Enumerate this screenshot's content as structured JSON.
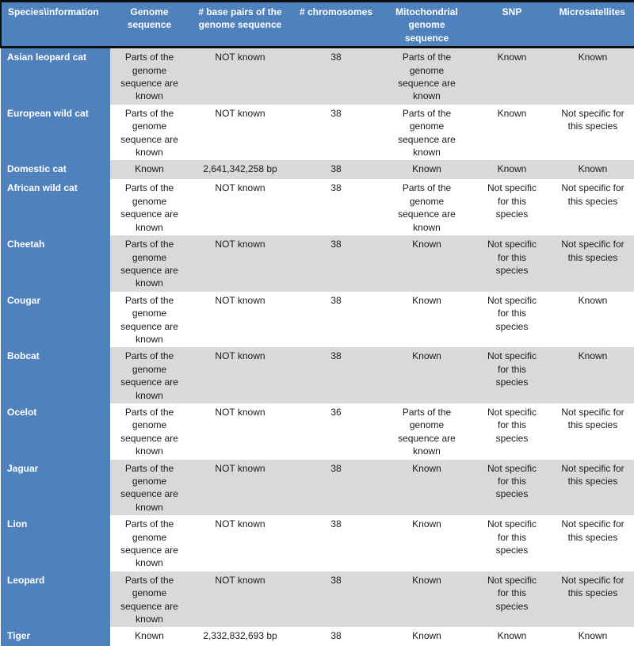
{
  "colors": {
    "accent_blue": "#4f81bd",
    "row_gray": "#d9d9d9",
    "row_white": "#ffffff",
    "border_black": "#0d0d0d",
    "header_text": "#ffffff",
    "body_text": "#1a1a1a"
  },
  "table": {
    "columns": [
      {
        "label": "Species\\information"
      },
      {
        "label": "Genome\nsequence"
      },
      {
        "label": "# base pairs of the\ngenome sequence"
      },
      {
        "label": "# chromosomes"
      },
      {
        "label": "Mitochondrial\ngenome\nsequence"
      },
      {
        "label": "SNP"
      },
      {
        "label": "Microsatellites"
      }
    ],
    "rows": [
      {
        "species": "Asian leopard cat",
        "genome_sequence": "Parts of the\ngenome\nsequence are\nknown",
        "base_pairs": "NOT known",
        "chromosomes": "38",
        "mitochondrial": "Parts of the\ngenome\nsequence are\nknown",
        "snp": "Known",
        "microsatellites": "Known"
      },
      {
        "species": "European wild cat",
        "genome_sequence": "Parts of the\ngenome\nsequence are\nknown",
        "base_pairs": "NOT known",
        "chromosomes": "38",
        "mitochondrial": "Parts of the\ngenome\nsequence are\nknown",
        "snp": "Known",
        "microsatellites": "Not specific for\nthis species"
      },
      {
        "species": "Domestic cat",
        "genome_sequence": "Known",
        "base_pairs": "2,641,342,258 bp",
        "chromosomes": "38",
        "mitochondrial": "Known",
        "snp": "Known",
        "microsatellites": "Known"
      },
      {
        "species": "African wild cat",
        "genome_sequence": "Parts of the\ngenome\nsequence are\nknown",
        "base_pairs": "NOT known",
        "chromosomes": "38",
        "mitochondrial": "Parts of the\ngenome\nsequence are\nknown",
        "snp": "Not specific\nfor this\nspecies",
        "microsatellites": "Not specific for\nthis species"
      },
      {
        "species": "Cheetah",
        "genome_sequence": "Parts of the\ngenome\nsequence are\nknown",
        "base_pairs": "NOT known",
        "chromosomes": "38",
        "mitochondrial": "Known",
        "snp": "Not specific\nfor this\nspecies",
        "microsatellites": "Not specific for\nthis species"
      },
      {
        "species": "Cougar",
        "genome_sequence": "Parts of the\ngenome\nsequence are\nknown",
        "base_pairs": "NOT known",
        "chromosomes": "38",
        "mitochondrial": "Known",
        "snp": "Not specific\nfor this\nspecies",
        "microsatellites": "Known"
      },
      {
        "species": "Bobcat",
        "genome_sequence": "Parts of the\ngenome\nsequence are\nknown",
        "base_pairs": "NOT known",
        "chromosomes": "38",
        "mitochondrial": "Known",
        "snp": "Not specific\nfor this\nspecies",
        "microsatellites": "Known"
      },
      {
        "species": "Ocelot",
        "genome_sequence": "Parts of the\ngenome\nsequence are\nknown",
        "base_pairs": "NOT known",
        "chromosomes": "36",
        "mitochondrial": "Parts of the\ngenome\nsequence are\nknown",
        "snp": "Not specific\nfor this\nspecies",
        "microsatellites": "Not specific for\nthis species"
      },
      {
        "species": "Jaguar",
        "genome_sequence": "Parts of the\ngenome\nsequence are\nknown",
        "base_pairs": "NOT known",
        "chromosomes": "38",
        "mitochondrial": "Known",
        "snp": "Not specific\nfor this\nspecies",
        "microsatellites": "Not specific for\nthis species"
      },
      {
        "species": "Lion",
        "genome_sequence": "Parts of the\ngenome\nsequence are\nknown",
        "base_pairs": "NOT known",
        "chromosomes": "38",
        "mitochondrial": "Known",
        "snp": "Not specific\nfor this\nspecies",
        "microsatellites": "Not specific for\nthis species"
      },
      {
        "species": "Leopard",
        "genome_sequence": "Parts of the\ngenome\nsequence are\nknown",
        "base_pairs": "NOT known",
        "chromosomes": "38",
        "mitochondrial": "Known",
        "snp": "Not specific\nfor this\nspecies",
        "microsatellites": "Not specific for\nthis species"
      },
      {
        "species": "Tiger",
        "genome_sequence": "Known",
        "base_pairs": "2,332,832,693 bp",
        "chromosomes": "38",
        "mitochondrial": "Known",
        "snp": "Known",
        "microsatellites": "Known"
      }
    ]
  }
}
